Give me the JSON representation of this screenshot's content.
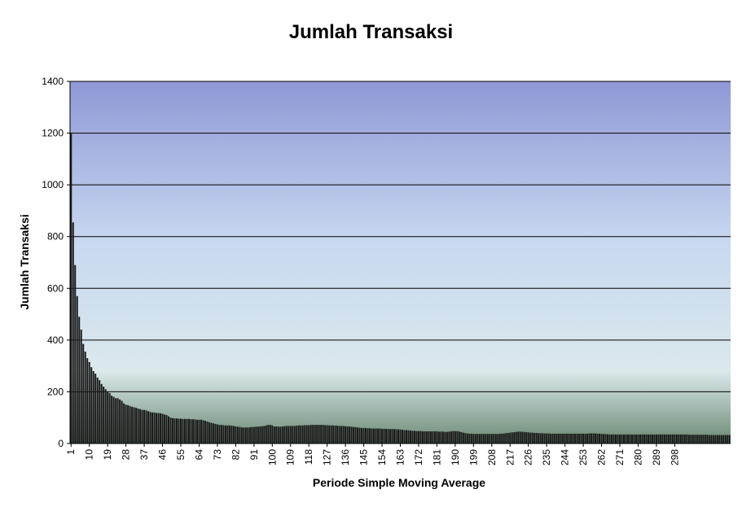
{
  "chart_data": {
    "type": "bar",
    "title": "Jumlah Transaksi",
    "xlabel": "Periode Simple Moving Average",
    "ylabel": "Jumlah Transaksi",
    "ylim": [
      0,
      1400
    ],
    "y_ticks": [
      0,
      200,
      400,
      600,
      800,
      1000,
      1200,
      1400
    ],
    "x_range": [
      1,
      300
    ],
    "x_tick_labels": [
      "1",
      "10",
      "19",
      "28",
      "37",
      "46",
      "55",
      "64",
      "73",
      "82",
      "91",
      "100",
      "109",
      "118",
      "127",
      "136",
      "145",
      "154",
      "163",
      "172",
      "181",
      "190",
      "199",
      "208",
      "217",
      "226",
      "235",
      "244",
      "253",
      "262",
      "271",
      "280",
      "289",
      "298"
    ],
    "grid": true,
    "legend": "none",
    "bar_color": "#1a1a1a",
    "background_gradient": [
      "#8f98d6",
      "#c8d9f0",
      "#dbe8ec",
      "#6b8a73"
    ],
    "values": [
      1200,
      855,
      690,
      570,
      490,
      440,
      385,
      355,
      330,
      315,
      295,
      280,
      270,
      255,
      245,
      230,
      220,
      210,
      200,
      195,
      185,
      180,
      175,
      175,
      170,
      165,
      155,
      150,
      148,
      145,
      142,
      140,
      138,
      135,
      133,
      130,
      130,
      128,
      125,
      122,
      120,
      120,
      118,
      118,
      117,
      115,
      112,
      110,
      105,
      100,
      98,
      97,
      97,
      96,
      96,
      95,
      95,
      95,
      95,
      94,
      94,
      93,
      92,
      92,
      92,
      90,
      88,
      85,
      82,
      80,
      78,
      76,
      74,
      72,
      72,
      71,
      70,
      70,
      70,
      69,
      68,
      66,
      65,
      64,
      62,
      62,
      62,
      62,
      63,
      64,
      64,
      65,
      65,
      66,
      67,
      68,
      70,
      72,
      72,
      70,
      66,
      66,
      65,
      65,
      66,
      67,
      68,
      68,
      68,
      68,
      68,
      69,
      70,
      70,
      70,
      71,
      71,
      71,
      72,
      72,
      72,
      72,
      72,
      72,
      72,
      71,
      71,
      70,
      70,
      70,
      69,
      69,
      68,
      68,
      68,
      67,
      66,
      66,
      65,
      64,
      63,
      62,
      61,
      60,
      60,
      60,
      59,
      59,
      58,
      58,
      58,
      58,
      58,
      57,
      57,
      57,
      56,
      56,
      56,
      56,
      55,
      55,
      54,
      53,
      52,
      52,
      51,
      50,
      49,
      49,
      48,
      48,
      48,
      47,
      47,
      47,
      47,
      47,
      47,
      47,
      47,
      46,
      46,
      46,
      45,
      45,
      46,
      47,
      48,
      48,
      48,
      46,
      44,
      42,
      40,
      39,
      38,
      38,
      37,
      37,
      37,
      37,
      37,
      37,
      37,
      37,
      37,
      37,
      37,
      37,
      37,
      38,
      38,
      39,
      40,
      41,
      42,
      43,
      44,
      45,
      46,
      46,
      45,
      45,
      44,
      43,
      42,
      42,
      41,
      41,
      40,
      40,
      40,
      39,
      39,
      39,
      38,
      38,
      38,
      38,
      38,
      38,
      38,
      38,
      38,
      38,
      38,
      38,
      38,
      38,
      38,
      38,
      38,
      38,
      38,
      39,
      39,
      39,
      39,
      38,
      38,
      37,
      37,
      36,
      36,
      35,
      35,
      35,
      35,
      35,
      35,
      35,
      35,
      35,
      35,
      35,
      35,
      35,
      35,
      35,
      35,
      35,
      35,
      35,
      35,
      35,
      35,
      35,
      35,
      35,
      35,
      35,
      35,
      35,
      35,
      35,
      35,
      35,
      35,
      35,
      35,
      35,
      35,
      35,
      34,
      34,
      34,
      34,
      34,
      34,
      34,
      34,
      34,
      34,
      33,
      33,
      33,
      33,
      33,
      33,
      33,
      33,
      33,
      33,
      33
    ]
  }
}
